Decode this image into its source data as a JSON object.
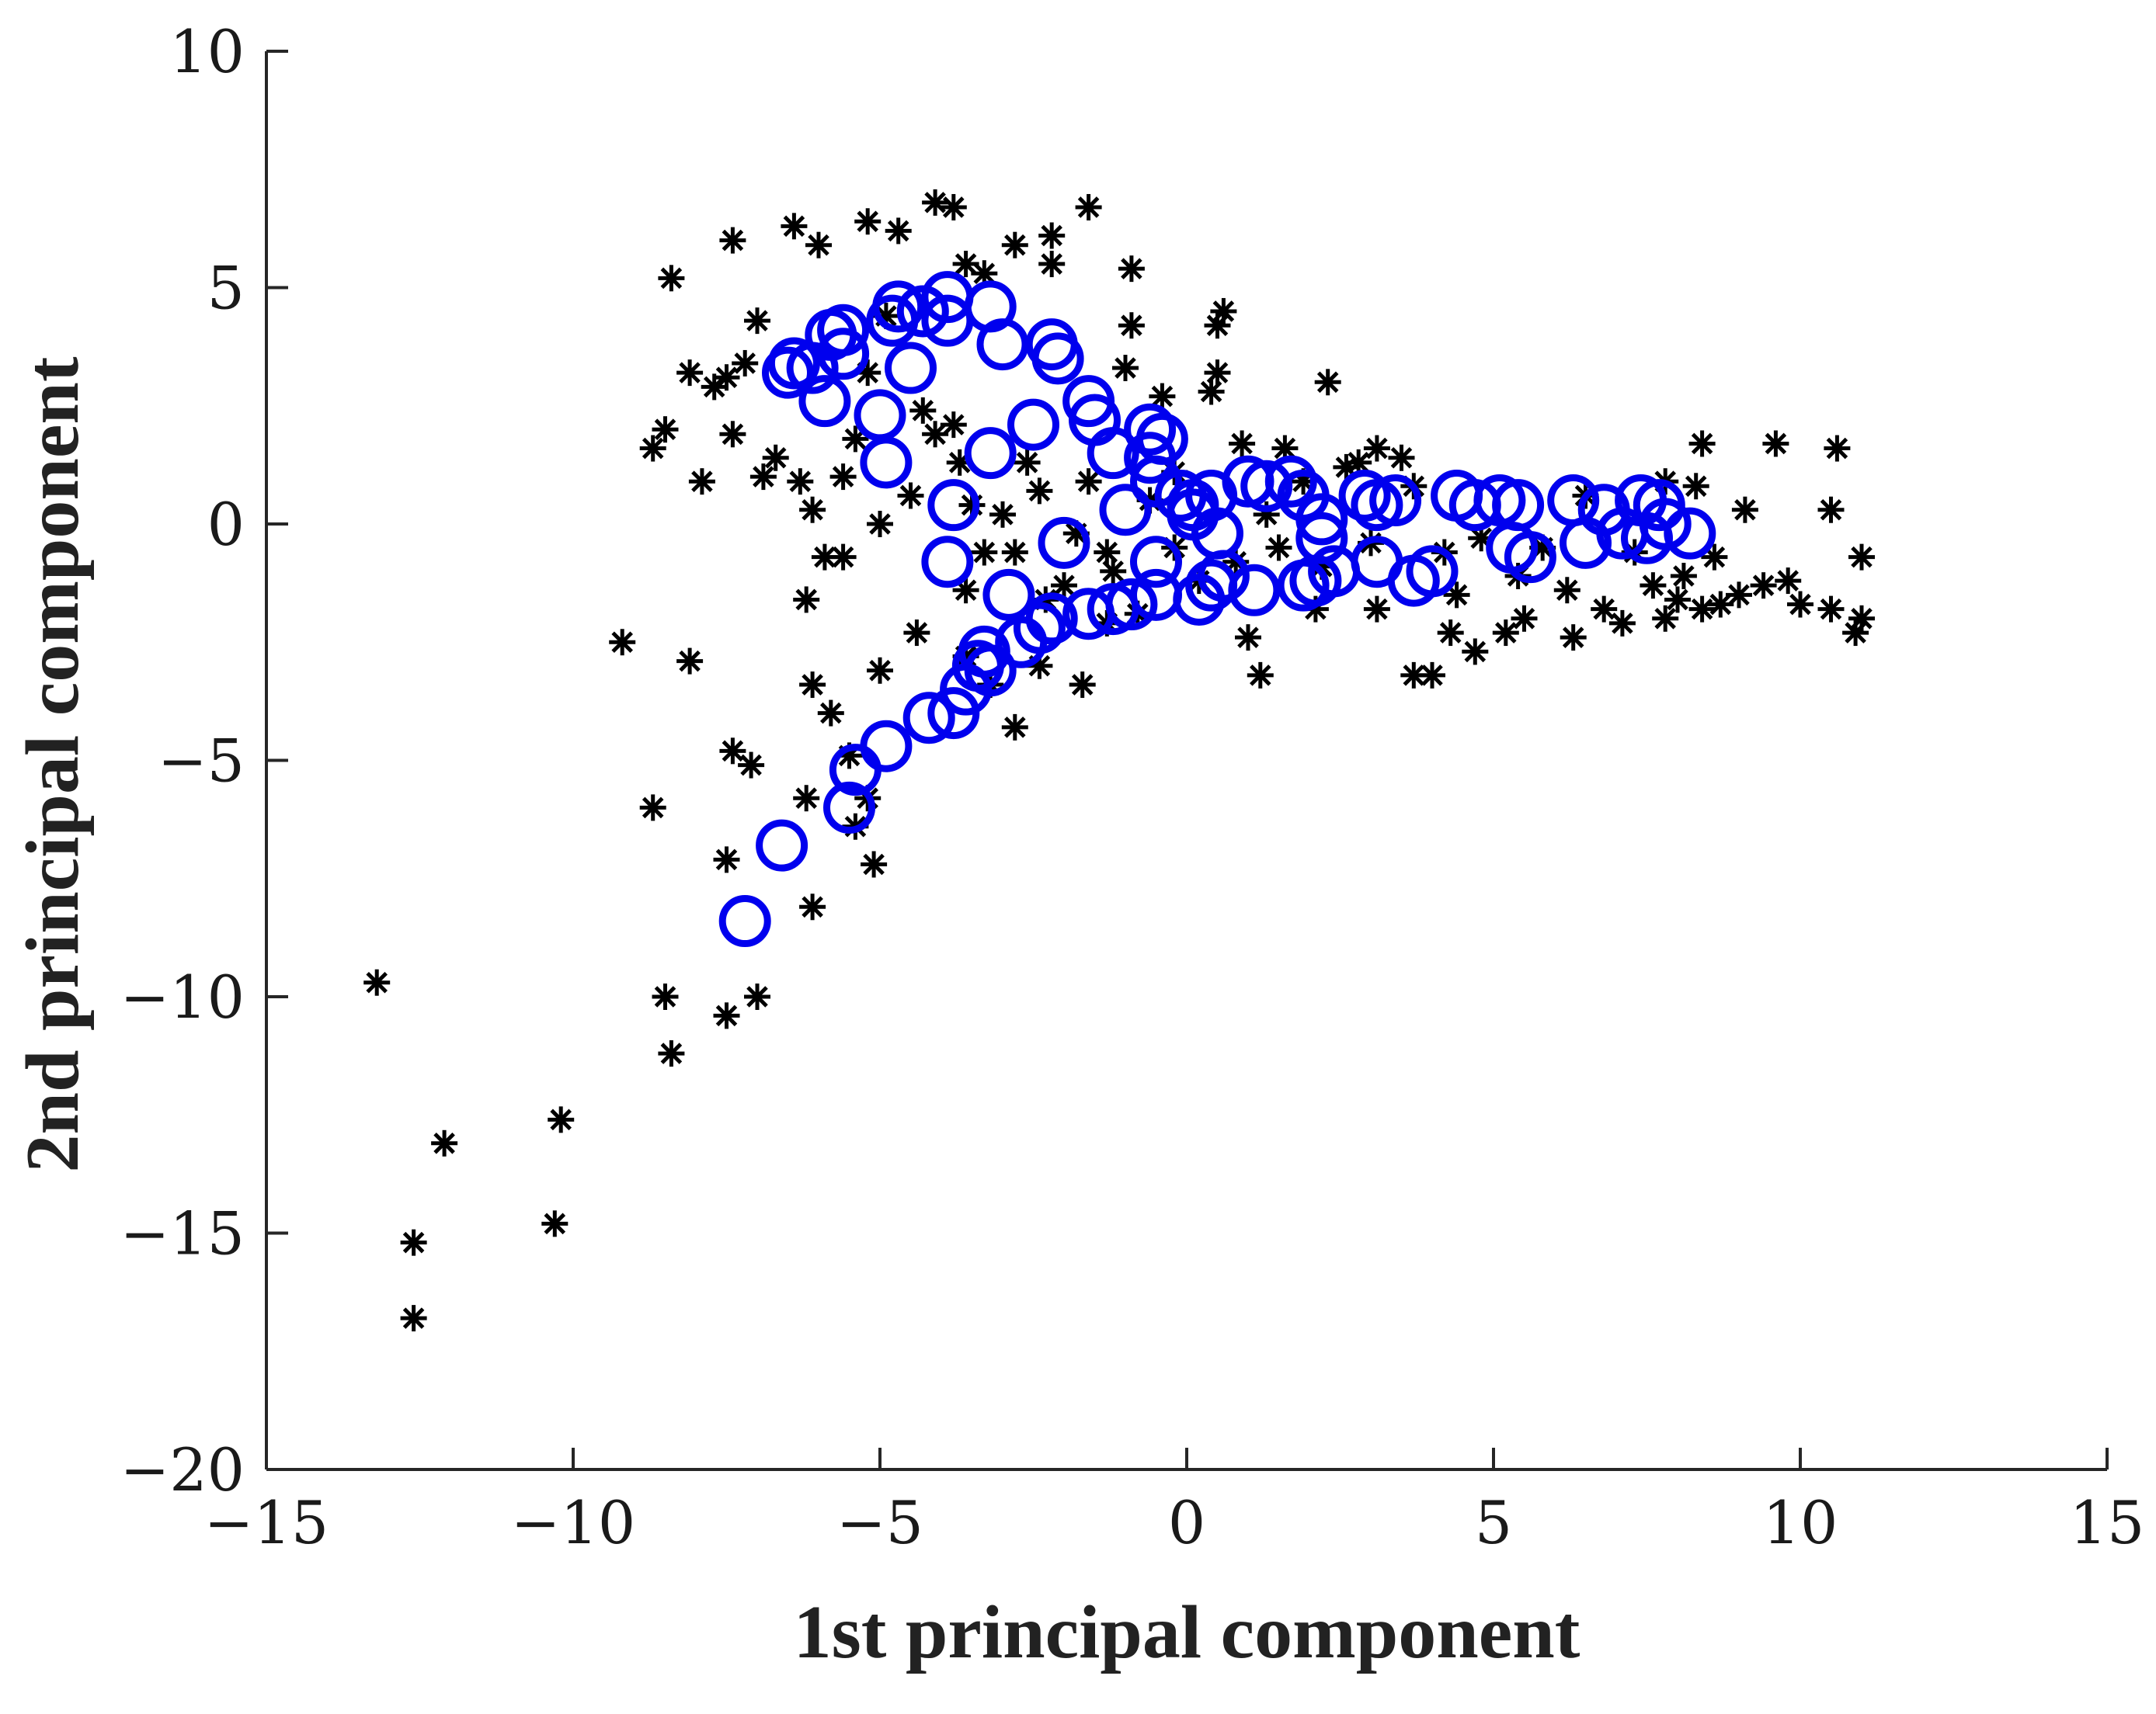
{
  "chart_data": {
    "type": "scatter",
    "title": "",
    "xlabel": "1st principal component",
    "ylabel": "2nd principal component",
    "xlim": [
      -15,
      15
    ],
    "ylim": [
      -20,
      10
    ],
    "xticks": [
      -15,
      -10,
      -5,
      0,
      5,
      10,
      15
    ],
    "yticks": [
      -20,
      -15,
      -10,
      -5,
      0,
      5,
      10
    ],
    "xtick_labels": [
      "−15",
      "−10",
      "−5",
      "0",
      "5",
      "10",
      "15"
    ],
    "ytick_labels": [
      "−20",
      "−15",
      "−10",
      "−5",
      "0",
      "5",
      "10"
    ],
    "grid": false,
    "legend": "none",
    "colors": {
      "asterisks": "#000000",
      "circles": "#0000ee",
      "axes": "#262626"
    },
    "series": [
      {
        "marker": "asterisk",
        "color": "#000000",
        "points": [
          [
            -13.2,
            -9.7
          ],
          [
            -12.6,
            -15.2
          ],
          [
            -12.6,
            -16.8
          ],
          [
            -12.1,
            -13.1
          ],
          [
            -10.2,
            -12.6
          ],
          [
            -10.3,
            -14.8
          ],
          [
            -9.2,
            -2.5
          ],
          [
            -8.7,
            -6.0
          ],
          [
            -8.5,
            -10.0
          ],
          [
            -8.4,
            -11.2
          ],
          [
            -8.1,
            -2.9
          ],
          [
            -7.5,
            -10.4
          ],
          [
            -7.5,
            -7.1
          ],
          [
            -7.4,
            -4.8
          ],
          [
            -7.1,
            -5.1
          ],
          [
            -7.0,
            -10.0
          ],
          [
            -6.1,
            -8.1
          ],
          [
            -6.2,
            -5.8
          ],
          [
            -6.1,
            -3.4
          ],
          [
            -5.8,
            -4.0
          ],
          [
            -5.4,
            -6.4
          ],
          [
            -5.1,
            -7.2
          ],
          [
            -5.0,
            -3.1
          ],
          [
            -5.5,
            -4.9
          ],
          [
            -5.2,
            -5.8
          ],
          [
            -8.4,
            5.2
          ],
          [
            -7.4,
            6.0
          ],
          [
            -6.4,
            6.3
          ],
          [
            -6.0,
            5.9
          ],
          [
            -5.2,
            6.4
          ],
          [
            -4.7,
            6.2
          ],
          [
            -4.1,
            6.8
          ],
          [
            -3.8,
            6.7
          ],
          [
            -3.6,
            5.5
          ],
          [
            -2.8,
            5.9
          ],
          [
            -2.2,
            6.1
          ],
          [
            -1.6,
            6.7
          ],
          [
            -0.9,
            5.4
          ],
          [
            -2.2,
            5.5
          ],
          [
            -3.3,
            5.3
          ],
          [
            -8.7,
            1.6
          ],
          [
            -8.5,
            2.0
          ],
          [
            -8.1,
            3.2
          ],
          [
            -7.9,
            0.9
          ],
          [
            -7.7,
            2.9
          ],
          [
            -7.5,
            3.1
          ],
          [
            -7.4,
            1.9
          ],
          [
            -7.2,
            3.4
          ],
          [
            -7.0,
            4.3
          ],
          [
            -6.9,
            1.0
          ],
          [
            -6.7,
            1.4
          ],
          [
            -6.3,
            0.9
          ],
          [
            -6.1,
            0.3
          ],
          [
            -5.9,
            -0.7
          ],
          [
            -5.6,
            1.0
          ],
          [
            -5.4,
            1.8
          ],
          [
            -5.2,
            3.2
          ],
          [
            -5.0,
            0.0
          ],
          [
            -4.9,
            4.4
          ],
          [
            -4.5,
            0.6
          ],
          [
            -4.3,
            2.4
          ],
          [
            -4.1,
            1.9
          ],
          [
            -3.8,
            2.1
          ],
          [
            -3.7,
            1.3
          ],
          [
            -3.5,
            0.4
          ],
          [
            -3.3,
            -0.6
          ],
          [
            -3.0,
            0.2
          ],
          [
            -2.8,
            -0.6
          ],
          [
            -2.6,
            1.3
          ],
          [
            -2.4,
            0.7
          ],
          [
            -2.0,
            -1.3
          ],
          [
            -1.8,
            -0.2
          ],
          [
            -1.6,
            0.9
          ],
          [
            -1.3,
            -0.6
          ],
          [
            -1.0,
            3.3
          ],
          [
            -0.9,
            4.2
          ],
          [
            -0.6,
            0.5
          ],
          [
            -0.4,
            2.7
          ],
          [
            -0.2,
            1.1
          ],
          [
            0.4,
            2.8
          ],
          [
            0.5,
            3.2
          ],
          [
            0.6,
            4.5
          ],
          [
            0.5,
            4.2
          ],
          [
            0.9,
            1.7
          ],
          [
            1.3,
            0.2
          ],
          [
            1.6,
            1.6
          ],
          [
            1.9,
            0.9
          ],
          [
            2.3,
            3.0
          ],
          [
            2.6,
            1.2
          ],
          [
            2.8,
            1.3
          ],
          [
            3.1,
            1.6
          ],
          [
            3.5,
            1.4
          ],
          [
            3.7,
            0.8
          ],
          [
            -4.4,
            -2.3
          ],
          [
            -3.6,
            -2.8
          ],
          [
            -3.2,
            -3.4
          ],
          [
            -2.8,
            -4.3
          ],
          [
            -2.4,
            -3.0
          ],
          [
            -1.7,
            -3.4
          ],
          [
            -1.3,
            -2.1
          ],
          [
            -0.8,
            -1.9
          ],
          [
            0.2,
            -1.2
          ],
          [
            1.0,
            -2.4
          ],
          [
            1.2,
            -3.2
          ],
          [
            2.1,
            -1.8
          ],
          [
            3.1,
            -1.8
          ],
          [
            3.7,
            -3.2
          ],
          [
            4.0,
            -3.2
          ],
          [
            4.3,
            -2.3
          ],
          [
            4.7,
            -2.7
          ],
          [
            5.2,
            -2.3
          ],
          [
            5.5,
            -2.0
          ],
          [
            6.3,
            -2.4
          ],
          [
            6.8,
            -1.8
          ],
          [
            7.1,
            -2.1
          ],
          [
            7.8,
            -2.0
          ],
          [
            8.0,
            -1.6
          ],
          [
            8.4,
            -1.8
          ],
          [
            8.7,
            -1.7
          ],
          [
            9.0,
            -1.5
          ],
          [
            9.4,
            -1.3
          ],
          [
            9.8,
            -1.2
          ],
          [
            10.0,
            -1.7
          ],
          [
            10.5,
            -1.8
          ],
          [
            11.0,
            -2.0
          ],
          [
            10.9,
            -2.3
          ],
          [
            11.0,
            -0.7
          ],
          [
            10.5,
            0.3
          ],
          [
            10.6,
            1.6
          ],
          [
            9.6,
            1.7
          ],
          [
            9.1,
            0.3
          ],
          [
            8.4,
            1.7
          ],
          [
            8.3,
            0.8
          ],
          [
            7.8,
            0.9
          ],
          [
            6.5,
            0.6
          ],
          [
            5.8,
            -0.5
          ],
          [
            4.8,
            -0.3
          ],
          [
            4.2,
            -0.6
          ],
          [
            3.0,
            -0.4
          ],
          [
            2.2,
            -0.9
          ],
          [
            1.5,
            -0.5
          ],
          [
            0.8,
            -0.8
          ],
          [
            -0.2,
            -0.5
          ],
          [
            -1.2,
            -1.0
          ],
          [
            -2.3,
            -1.6
          ],
          [
            -3.6,
            -1.4
          ],
          [
            -5.6,
            -0.7
          ],
          [
            -6.2,
            -1.6
          ],
          [
            7.3,
            -0.6
          ],
          [
            7.6,
            -1.3
          ],
          [
            8.1,
            -1.1
          ],
          [
            8.6,
            -0.7
          ],
          [
            6.2,
            -1.4
          ],
          [
            5.4,
            -1.1
          ],
          [
            4.4,
            -1.5
          ]
        ]
      },
      {
        "marker": "circle",
        "color": "#0000ee",
        "points": [
          [
            -7.2,
            -8.4
          ],
          [
            -6.6,
            -6.8
          ],
          [
            -5.5,
            -6.0
          ],
          [
            -5.4,
            -5.2
          ],
          [
            -4.9,
            -4.7
          ],
          [
            -4.2,
            -4.1
          ],
          [
            -3.8,
            -4.0
          ],
          [
            -3.6,
            -3.5
          ],
          [
            -3.4,
            -3.0
          ],
          [
            -3.2,
            -3.1
          ],
          [
            -3.3,
            -2.7
          ],
          [
            -2.7,
            -2.5
          ],
          [
            -2.4,
            -2.2
          ],
          [
            -2.2,
            -2.0
          ],
          [
            -1.6,
            -1.9
          ],
          [
            -1.2,
            -1.8
          ],
          [
            -0.9,
            -1.7
          ],
          [
            -0.5,
            -1.5
          ],
          [
            0.2,
            -1.6
          ],
          [
            0.4,
            -1.3
          ],
          [
            0.6,
            -1.1
          ],
          [
            1.1,
            -1.4
          ],
          [
            1.9,
            -1.3
          ],
          [
            2.1,
            -1.2
          ],
          [
            2.4,
            -1.0
          ],
          [
            3.1,
            -0.8
          ],
          [
            3.7,
            -1.2
          ],
          [
            4.0,
            -1.0
          ],
          [
            5.3,
            -0.5
          ],
          [
            5.6,
            -0.7
          ],
          [
            6.5,
            -0.4
          ],
          [
            7.1,
            -0.2
          ],
          [
            7.5,
            -0.3
          ],
          [
            7.8,
            0.0
          ],
          [
            8.2,
            -0.2
          ],
          [
            7.7,
            0.4
          ],
          [
            7.4,
            0.5
          ],
          [
            6.8,
            0.3
          ],
          [
            6.3,
            0.5
          ],
          [
            5.4,
            0.4
          ],
          [
            5.1,
            0.5
          ],
          [
            4.7,
            0.4
          ],
          [
            4.4,
            0.6
          ],
          [
            3.4,
            0.5
          ],
          [
            3.1,
            0.4
          ],
          [
            2.9,
            0.6
          ],
          [
            2.2,
            0.1
          ],
          [
            1.9,
            0.6
          ],
          [
            1.7,
            0.9
          ],
          [
            1.3,
            0.8
          ],
          [
            1.0,
            0.9
          ],
          [
            0.4,
            0.6
          ],
          [
            0.1,
            0.4
          ],
          [
            -0.1,
            0.6
          ],
          [
            -0.5,
            0.9
          ],
          [
            -0.6,
            1.4
          ],
          [
            -0.4,
            1.8
          ],
          [
            -0.6,
            2.0
          ],
          [
            -1.2,
            1.5
          ],
          [
            -1.5,
            2.2
          ],
          [
            -1.6,
            2.6
          ],
          [
            -2.1,
            3.5
          ],
          [
            -2.2,
            3.8
          ],
          [
            -2.5,
            2.1
          ],
          [
            -3.0,
            3.8
          ],
          [
            -3.2,
            4.6
          ],
          [
            -3.9,
            4.3
          ],
          [
            -3.9,
            4.8
          ],
          [
            -4.3,
            4.5
          ],
          [
            -4.7,
            4.6
          ],
          [
            -4.8,
            4.3
          ],
          [
            -4.5,
            3.3
          ],
          [
            -5.0,
            2.3
          ],
          [
            -4.9,
            1.3
          ],
          [
            -5.6,
            3.6
          ],
          [
            -5.6,
            4.1
          ],
          [
            -5.8,
            4.0
          ],
          [
            -6.1,
            3.3
          ],
          [
            -6.4,
            3.4
          ],
          [
            -6.5,
            3.2
          ],
          [
            -5.9,
            2.6
          ],
          [
            -3.2,
            1.5
          ],
          [
            -3.8,
            0.4
          ],
          [
            -3.9,
            -0.8
          ],
          [
            -2.9,
            -1.5
          ],
          [
            -2.0,
            -0.4
          ],
          [
            -1.0,
            0.3
          ],
          [
            -0.5,
            -0.8
          ],
          [
            0.1,
            0.2
          ],
          [
            0.5,
            -0.2
          ],
          [
            2.2,
            -0.3
          ]
        ]
      }
    ]
  }
}
